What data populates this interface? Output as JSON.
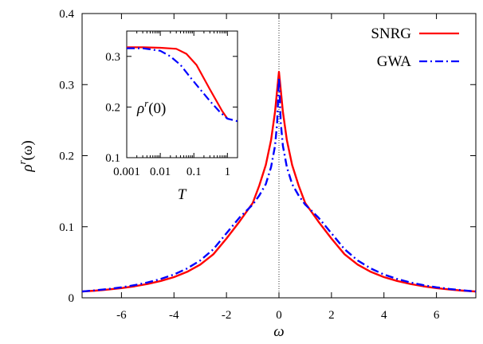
{
  "chart_data": [
    {
      "type": "line",
      "title": "",
      "xlabel": "ω",
      "ylabel": "ρ",
      "ylabel_sup": "r",
      "ylabel_arg": "(ω)",
      "xlim": [
        -7.5,
        7.5
      ],
      "ylim": [
        0,
        0.4
      ],
      "xticks": [
        -6,
        -4,
        -2,
        0,
        2,
        4,
        6
      ],
      "xtick_labels": [
        "-6",
        "-4",
        "-2",
        "0",
        "2",
        "4",
        "6"
      ],
      "yticks": [
        0,
        0.1,
        0.2,
        0.3,
        0.4
      ],
      "ytick_labels": [
        "0",
        "0.1",
        "0.2",
        "0.3",
        "0.4"
      ],
      "grid": false,
      "legend_position": "top-right",
      "reference_line": {
        "x": 0,
        "style": "dotted"
      },
      "series": [
        {
          "name": "SNRG",
          "color": "#ff0000",
          "dash": "solid",
          "x": [
            -7.5,
            -7,
            -6.5,
            -6,
            -5.5,
            -5,
            -4.5,
            -4,
            -3.5,
            -3,
            -2.5,
            -2,
            -1.5,
            -1,
            -0.75,
            -0.5,
            -0.3,
            -0.15,
            -0.07,
            0,
            0.07,
            0.15,
            0.3,
            0.5,
            0.75,
            1,
            1.5,
            2,
            2.5,
            3,
            3.5,
            4,
            4.5,
            5,
            5.5,
            6,
            6.5,
            7,
            7.5
          ],
          "y": [
            0.0088,
            0.0101,
            0.0117,
            0.0137,
            0.0162,
            0.0195,
            0.0237,
            0.0291,
            0.0365,
            0.0467,
            0.0613,
            0.0834,
            0.1075,
            0.1335,
            0.158,
            0.187,
            0.222,
            0.262,
            0.292,
            0.318,
            0.292,
            0.262,
            0.222,
            0.187,
            0.158,
            0.1335,
            0.1075,
            0.0834,
            0.0613,
            0.0467,
            0.0365,
            0.0291,
            0.0237,
            0.0195,
            0.0162,
            0.0137,
            0.0117,
            0.0101,
            0.0088
          ]
        },
        {
          "name": "GWA",
          "color": "#0000ff",
          "dash": "dash-dot",
          "x": [
            -7.5,
            -7,
            -6.5,
            -6,
            -5.5,
            -5,
            -4.5,
            -4,
            -3.5,
            -3,
            -2.5,
            -2,
            -1.5,
            -1,
            -0.75,
            -0.5,
            -0.3,
            -0.15,
            -0.07,
            0,
            0.07,
            0.15,
            0.3,
            0.5,
            0.75,
            1,
            1.5,
            2,
            2.5,
            3,
            3.5,
            4,
            4.5,
            5,
            5.5,
            6,
            6.5,
            7,
            7.5
          ],
          "y": [
            0.0088,
            0.0105,
            0.0124,
            0.0148,
            0.0178,
            0.0216,
            0.0265,
            0.0328,
            0.0412,
            0.0525,
            0.0683,
            0.0908,
            0.113,
            0.1312,
            0.144,
            0.16,
            0.184,
            0.214,
            0.246,
            0.31,
            0.246,
            0.214,
            0.184,
            0.16,
            0.144,
            0.1312,
            0.113,
            0.0908,
            0.0683,
            0.0525,
            0.0412,
            0.0328,
            0.0265,
            0.0216,
            0.0178,
            0.0148,
            0.0124,
            0.0105,
            0.0088
          ]
        }
      ]
    },
    {
      "type": "line",
      "title": "",
      "xlabel": "T",
      "ylabel": "",
      "annotation": {
        "base": "ρ",
        "sup": "r",
        "arg": "(0)"
      },
      "x_scale": "log",
      "xlim": [
        0.001,
        2
      ],
      "ylim": [
        0.1,
        0.35
      ],
      "xticks": [
        0.001,
        0.01,
        0.1,
        1
      ],
      "xtick_labels": [
        "0.001",
        "0.01",
        "0.1",
        "1"
      ],
      "yticks": [
        0.1,
        0.2,
        0.3
      ],
      "ytick_labels": [
        "0.1",
        "0.2",
        "0.3"
      ],
      "series": [
        {
          "name": "SNRG",
          "color": "#ff0000",
          "dash": "solid",
          "x": [
            0.001,
            0.003,
            0.01,
            0.03,
            0.06,
            0.12,
            0.3,
            0.7,
            1.0
          ],
          "y": [
            0.318,
            0.318,
            0.317,
            0.315,
            0.305,
            0.283,
            0.235,
            0.192,
            0.177
          ]
        },
        {
          "name": "GWA",
          "color": "#0000ff",
          "dash": "dash-dot",
          "x": [
            0.001,
            0.003,
            0.01,
            0.02,
            0.04,
            0.08,
            0.15,
            0.3,
            0.6,
            1.0,
            2.0
          ],
          "y": [
            0.316,
            0.316,
            0.311,
            0.3,
            0.283,
            0.258,
            0.236,
            0.212,
            0.19,
            0.177,
            0.172
          ]
        }
      ]
    }
  ]
}
